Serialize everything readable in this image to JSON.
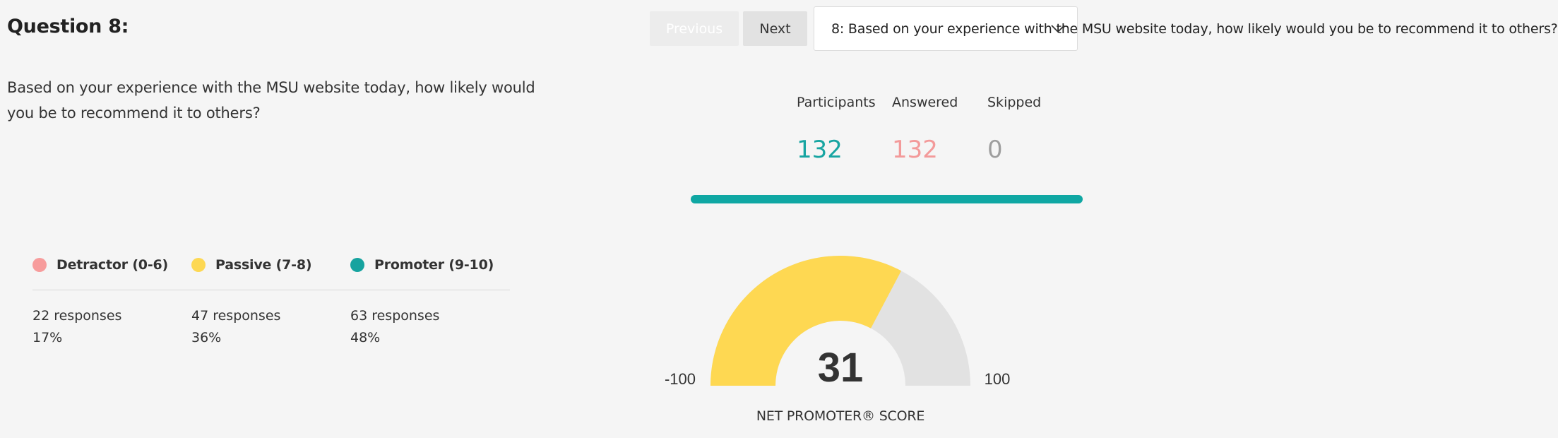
{
  "question": {
    "title": "Question 8:",
    "text": "Based on your experience with the MSU website today, how likely would you be to recommend it to others?"
  },
  "nav": {
    "previous_label": "Previous",
    "next_label": "Next",
    "selector_value": "8: Based on your experience with the MSU website today, how likely would you be to recommend it to others?"
  },
  "stats": {
    "participants": {
      "label": "Participants",
      "value": "132",
      "color": "#17a5a2"
    },
    "answered": {
      "label": "Answered",
      "value": "132",
      "color": "#f39a9a"
    },
    "skipped": {
      "label": "Skipped",
      "value": "0",
      "color": "#9e9e9e"
    },
    "answered_fraction": 1.0,
    "bar_color": "#0fa7a3"
  },
  "categories": [
    {
      "label": "Detractor (0-6)",
      "responses": "22 responses",
      "percent": "17%",
      "color": "#f79c9c"
    },
    {
      "label": "Passive (7-8)",
      "responses": "47 responses",
      "percent": "36%",
      "color": "#fdd853"
    },
    {
      "label": "Promoter (9-10)",
      "responses": "63 responses",
      "percent": "48%",
      "color": "#16a39f"
    }
  ],
  "nps": {
    "score": "31",
    "score_value": 31,
    "min_label": "-100",
    "max_label": "100",
    "min": -100,
    "max": 100,
    "caption": "NET PROMOTER® SCORE",
    "fill_color": "#fed852",
    "track_color": "#e2e2e2"
  }
}
